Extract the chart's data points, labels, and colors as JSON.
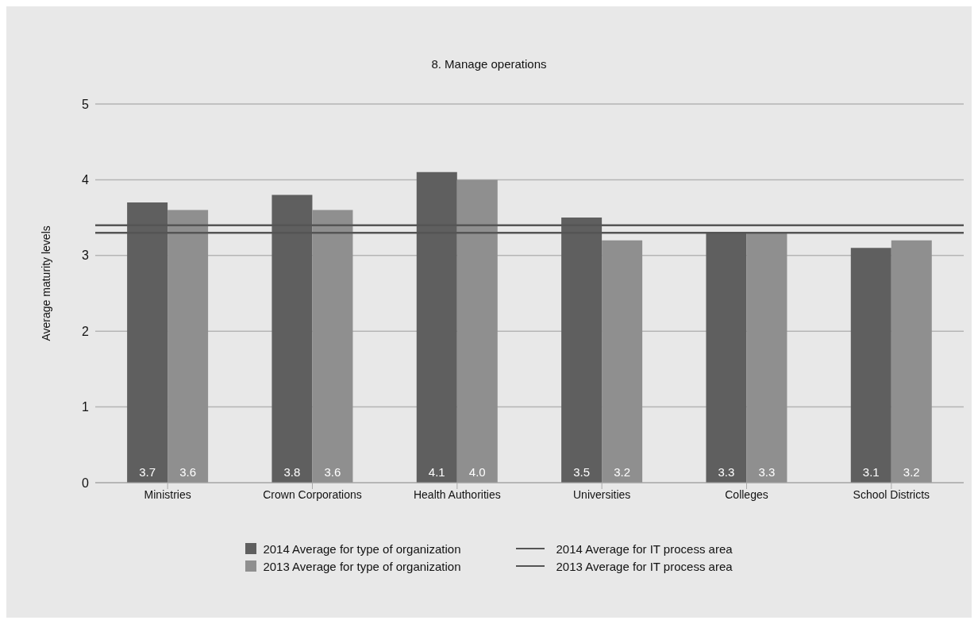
{
  "chart_data": {
    "type": "bar",
    "title": "8. Manage operations",
    "ylabel": "Average maturity levels",
    "categories": [
      "Ministries",
      "Crown Corporations",
      "Health Authorities",
      "Universities",
      "Colleges",
      "School Districts"
    ],
    "series": [
      {
        "name": "2014 Average for type of organization",
        "color": "#5f5f5f",
        "values": [
          3.7,
          3.8,
          4.1,
          3.5,
          3.3,
          3.1
        ],
        "value_labels": [
          "3.7",
          "3.8",
          "4.1",
          "3.5",
          "3.3",
          "3.1"
        ]
      },
      {
        "name": "2013 Average for type of organization",
        "color": "#8f8f8f",
        "values": [
          3.6,
          3.6,
          4.0,
          3.2,
          3.3,
          3.2
        ],
        "value_labels": [
          "3.6",
          "3.6",
          "4.0",
          "3.2",
          "3.3",
          "3.2"
        ]
      }
    ],
    "ref_lines": [
      {
        "axis": "y",
        "value": 3.4,
        "label": "2014 Average for IT process area",
        "color": "#555555"
      },
      {
        "axis": "y",
        "value": 3.3,
        "label": "2013 Average for IT process area",
        "color": "#555555"
      }
    ],
    "ylim": [
      0,
      5
    ],
    "yticks": [
      0,
      1,
      2,
      3,
      4,
      5
    ],
    "grid": "y",
    "legend": "bottom"
  }
}
